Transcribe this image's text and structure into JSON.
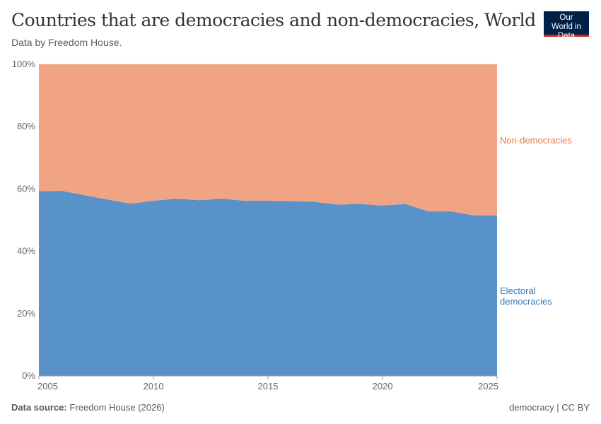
{
  "header": {
    "title": "Countries that are democracies and non-democracies, World",
    "subtitle": "Data by Freedom House.",
    "logo": "Our World in Data"
  },
  "footer": {
    "source_label": "Data source:",
    "source": "Freedom House (2026)",
    "license": "democracy | CC BY"
  },
  "chart_data": {
    "type": "area",
    "stacked": true,
    "normalized": true,
    "x": [
      2005,
      2006,
      2007,
      2008,
      2009,
      2010,
      2011,
      2012,
      2013,
      2014,
      2015,
      2016,
      2017,
      2018,
      2019,
      2020,
      2021,
      2022,
      2023,
      2024,
      2025
    ],
    "series": [
      {
        "name": "Electoral democracies",
        "color": "#4c8ac4",
        "values": [
          59.3,
          59.4,
          58.0,
          56.6,
          55.3,
          56.2,
          56.9,
          56.4,
          56.9,
          56.2,
          56.2,
          56.1,
          55.9,
          55.0,
          55.2,
          54.7,
          55.2,
          52.8,
          52.8,
          51.5,
          51.5
        ]
      },
      {
        "name": "Non-democracies",
        "color": "#f09a77",
        "values": [
          40.7,
          40.6,
          42.0,
          43.4,
          44.7,
          43.8,
          43.1,
          43.6,
          43.1,
          43.8,
          43.8,
          43.9,
          44.1,
          45.0,
          44.8,
          45.3,
          44.8,
          47.2,
          47.2,
          48.5,
          48.5
        ]
      }
    ],
    "xlim": [
      2005,
      2025
    ],
    "ylim": [
      0,
      100
    ],
    "x_ticks": [
      "2005",
      "2010",
      "2015",
      "2020",
      "2025"
    ],
    "y_ticks": [
      "0%",
      "20%",
      "40%",
      "60%",
      "80%",
      "100%"
    ],
    "legend_labels": {
      "democracies": [
        "Electoral",
        "democracies"
      ],
      "nondemocracies": "Non-democracies"
    },
    "legend": "right-inline",
    "grid": true
  }
}
